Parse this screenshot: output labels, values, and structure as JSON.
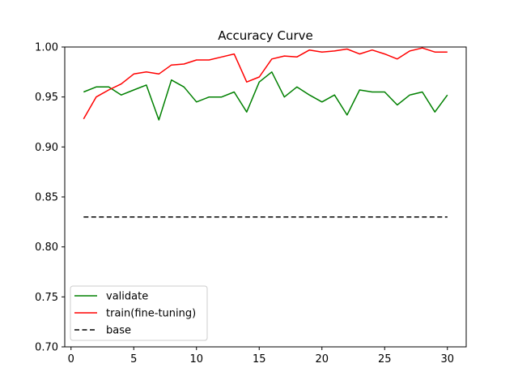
{
  "chart_data": {
    "type": "line",
    "title": "Accuracy Curve",
    "xlabel": "",
    "ylabel": "",
    "xlim": [
      -0.5,
      31.5
    ],
    "ylim": [
      0.7,
      1.0
    ],
    "xticks": [
      0,
      5,
      10,
      15,
      20,
      25,
      30
    ],
    "yticks": [
      0.7,
      0.75,
      0.8,
      0.85,
      0.9,
      0.95,
      1.0
    ],
    "xtick_labels": [
      "0",
      "5",
      "10",
      "15",
      "20",
      "25",
      "30"
    ],
    "ytick_labels": [
      "0.70",
      "0.75",
      "0.80",
      "0.85",
      "0.90",
      "0.95",
      "1.00"
    ],
    "grid": false,
    "legend_position": "lower-left",
    "x": [
      1,
      2,
      3,
      4,
      5,
      6,
      7,
      8,
      9,
      10,
      11,
      12,
      13,
      14,
      15,
      16,
      17,
      18,
      19,
      20,
      21,
      22,
      23,
      24,
      25,
      26,
      27,
      28,
      29,
      30
    ],
    "series": [
      {
        "name": "validate",
        "color": "#008000",
        "style": "solid",
        "values": [
          0.955,
          0.96,
          0.96,
          0.952,
          0.957,
          0.962,
          0.927,
          0.967,
          0.96,
          0.945,
          0.95,
          0.95,
          0.955,
          0.935,
          0.965,
          0.975,
          0.95,
          0.96,
          0.952,
          0.945,
          0.952,
          0.932,
          0.957,
          0.955,
          0.955,
          0.942,
          0.952,
          0.955,
          0.935,
          0.952
        ]
      },
      {
        "name": "train(fine-tuning)",
        "color": "#ff0000",
        "style": "solid",
        "values": [
          0.928,
          0.95,
          0.957,
          0.963,
          0.973,
          0.975,
          0.973,
          0.982,
          0.983,
          0.987,
          0.987,
          0.99,
          0.993,
          0.965,
          0.97,
          0.988,
          0.991,
          0.99,
          0.997,
          0.995,
          0.996,
          0.998,
          0.993,
          0.997,
          0.993,
          0.988,
          0.996,
          0.999,
          0.995,
          0.995
        ]
      },
      {
        "name": "base",
        "color": "#000000",
        "style": "dashed",
        "values": [
          0.83,
          0.83,
          0.83,
          0.83,
          0.83,
          0.83,
          0.83,
          0.83,
          0.83,
          0.83,
          0.83,
          0.83,
          0.83,
          0.83,
          0.83,
          0.83,
          0.83,
          0.83,
          0.83,
          0.83,
          0.83,
          0.83,
          0.83,
          0.83,
          0.83,
          0.83,
          0.83,
          0.83,
          0.83,
          0.83
        ]
      }
    ]
  }
}
